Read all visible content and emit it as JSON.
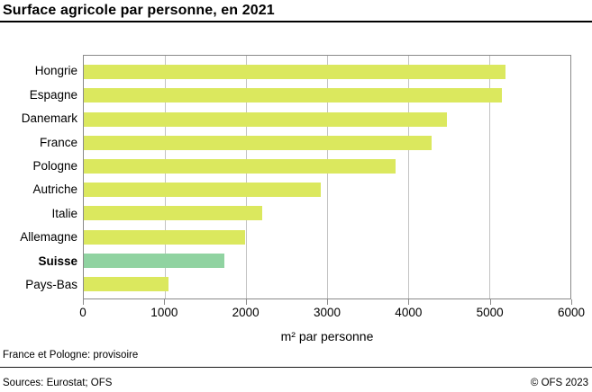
{
  "title": "Surface agricole par personne, en 2021",
  "chart_data": {
    "type": "bar",
    "orientation": "horizontal",
    "categories": [
      "Hongrie",
      "Espagne",
      "Danemark",
      "France",
      "Pologne",
      "Autriche",
      "Italie",
      "Allemagne",
      "Suisse",
      "Pays-Bas"
    ],
    "values": [
      5200,
      5150,
      4480,
      4290,
      3840,
      2920,
      2200,
      1990,
      1730,
      1040
    ],
    "highlight_category": "Suisse",
    "xlabel": "m² par personne",
    "xlim": [
      0,
      6000
    ],
    "xticks": [
      0,
      1000,
      2000,
      3000,
      4000,
      5000,
      6000
    ],
    "grid": true,
    "legend": "none",
    "bar_color": "#dbe85e",
    "highlight_color": "#90d3a1",
    "gridline_color": "#c3c3c3",
    "axis_color": "#8a8a8a"
  },
  "footnote": "France et Pologne: provisoire",
  "source": "Sources: Eurostat; OFS",
  "copyright": "© OFS 2023"
}
